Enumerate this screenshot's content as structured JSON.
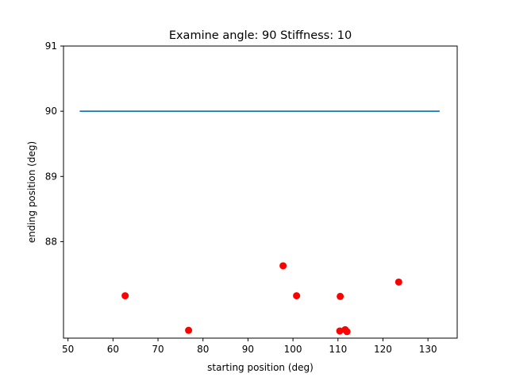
{
  "chart_data": {
    "type": "scatter",
    "title": "Examine angle: 90 Stiffness: 10",
    "xlabel": "starting position (deg)",
    "ylabel": "ending position (deg)",
    "xlim": [
      49,
      136.5
    ],
    "ylim": [
      86.52,
      91
    ],
    "xticks": [
      50,
      60,
      70,
      80,
      90,
      100,
      110,
      120,
      130
    ],
    "yticks": [
      88,
      89,
      90,
      91
    ],
    "grid": false,
    "series": [
      {
        "kind": "line",
        "color": "#1f77b4",
        "x": [
          52.6,
          132.6
        ],
        "y": [
          90,
          90
        ]
      },
      {
        "kind": "scatter",
        "color": "#ff0000",
        "x": [
          62.7,
          76.8,
          97.8,
          100.8,
          110.5,
          110.4,
          111.6,
          112.0,
          123.5
        ],
        "y": [
          87.17,
          86.64,
          87.63,
          87.17,
          87.16,
          86.63,
          86.65,
          86.62,
          87.38
        ]
      }
    ]
  }
}
